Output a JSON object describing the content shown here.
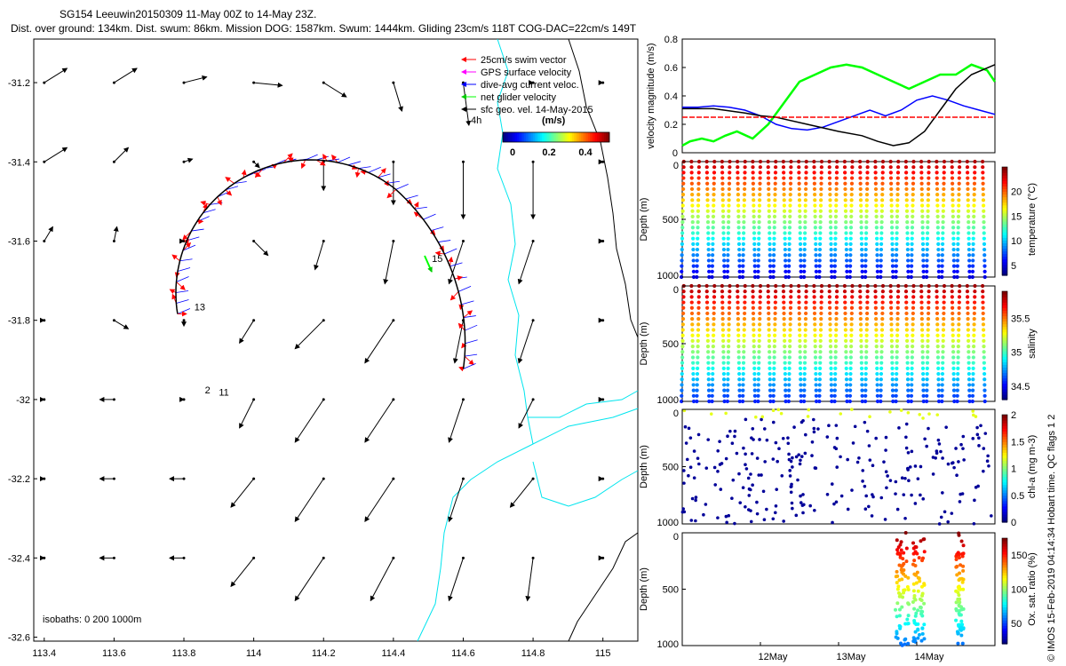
{
  "header": {
    "line1": "SG154 Leeuwin20150309 11-May 00Z to 14-May 23Z.",
    "line2": "Dist. over ground: 134km. Dist. swum: 86km. Mission DOG: 1587km. Swum: 1444km. Gliding 23cm/s 118T COG-DAC=22cm/s 149T"
  },
  "side_label": "© IMOS 15-Feb-2019 04:14:34 Hobart time. QC flags 1  2",
  "map": {
    "xticks": [
      "113.4",
      "113.6",
      "113.8",
      "114",
      "114.2",
      "114.4",
      "114.6",
      "114.8",
      "115"
    ],
    "xlim": [
      113.37,
      115.1
    ],
    "yticks": [
      "-31.2",
      "-31.4",
      "-31.6",
      "-31.8",
      "-32",
      "-32.2",
      "-32.4",
      "-32.6"
    ],
    "ylim": [
      -32.61,
      -31.09
    ],
    "isobaths": "isobaths: 0   200   1000m",
    "legend": [
      {
        "label": "25cm/s swim vector",
        "color": "#ff0000"
      },
      {
        "label": "GPS surface velocity",
        "color": "#ff00ff"
      },
      {
        "label": "dive-avg current veloc.",
        "color": "#0000ff"
      },
      {
        "label": "net glider velocity",
        "color": "#00ff00"
      },
      {
        "label": "sfc geo. vel. 14-May-2015",
        "color": "#000000"
      }
    ],
    "time_label": "4h",
    "colorbar": {
      "title": "(m/s)",
      "ticks": [
        "0",
        "0.2",
        "0.4"
      ]
    },
    "track_labels": [
      {
        "text": "13",
        "lon": 113.83,
        "lat": -31.775
      },
      {
        "text": "15",
        "lon": 114.51,
        "lat": -31.653
      },
      {
        "text": "2",
        "lon": 113.86,
        "lat": -31.985
      },
      {
        "text": "11",
        "lon": 113.9,
        "lat": -31.99
      }
    ],
    "vector_field": {
      "lons": [
        113.4,
        113.6,
        113.8,
        114.0,
        114.2,
        114.4,
        114.6,
        114.8,
        115.0
      ],
      "lats": [
        -31.2,
        -31.4,
        -31.6,
        -31.8,
        -32.0,
        -32.2,
        -32.4,
        -32.6
      ],
      "u_rows": [
        [
          0.08,
          0.08,
          0.08,
          0.1,
          0.08,
          0.03,
          0.02,
          0.0,
          0.0
        ],
        [
          0.08,
          0.05,
          0.03,
          0.02,
          0.0,
          0.0,
          0.0,
          0.0,
          0.0
        ],
        [
          0.03,
          0.01,
          0.0,
          0.05,
          -0.03,
          -0.03,
          -0.05,
          -0.05,
          0.0
        ],
        [
          0.0,
          0.05,
          0.0,
          -0.05,
          -0.1,
          -0.1,
          -0.03,
          -0.05,
          0.0
        ],
        [
          0.0,
          -0.05,
          0.0,
          -0.05,
          -0.1,
          -0.1,
          -0.05,
          -0.05,
          0.0
        ],
        [
          0.0,
          -0.05,
          -0.05,
          -0.08,
          -0.1,
          -0.1,
          -0.05,
          -0.08,
          0.0
        ],
        [
          0.0,
          -0.05,
          -0.05,
          -0.08,
          -0.1,
          -0.08,
          -0.05,
          -0.02,
          0.0
        ]
      ],
      "v_rows": [
        [
          0.05,
          0.05,
          0.02,
          -0.01,
          -0.05,
          -0.1,
          -0.15,
          0.0,
          0.0
        ],
        [
          0.05,
          0.05,
          0.01,
          -0.02,
          -0.1,
          -0.15,
          -0.2,
          -0.2,
          0.0
        ],
        [
          0.05,
          0.05,
          0.0,
          -0.05,
          -0.1,
          -0.15,
          -0.15,
          -0.15,
          0.0
        ],
        [
          0.0,
          -0.03,
          -0.02,
          -0.08,
          -0.1,
          -0.15,
          -0.15,
          -0.15,
          0.0
        ],
        [
          0.0,
          0.0,
          0.0,
          -0.1,
          -0.15,
          -0.15,
          -0.15,
          -0.1,
          0.0
        ],
        [
          0.0,
          0.0,
          0.0,
          -0.1,
          -0.15,
          -0.15,
          -0.15,
          -0.1,
          0.0
        ],
        [
          0.0,
          0.0,
          0.0,
          -0.1,
          -0.15,
          -0.15,
          -0.15,
          -0.15,
          0.0
        ]
      ]
    }
  },
  "time_axis": {
    "range": [
      11.0,
      15.0
    ],
    "ticks": [
      {
        "v": 12,
        "label": "12May"
      },
      {
        "v": 13,
        "label": "13May"
      },
      {
        "v": 14,
        "label": "14May"
      }
    ]
  },
  "velocity_panel": {
    "ylabel": "velocity magnitude (m/s)",
    "ylim": [
      0,
      0.8
    ],
    "yticks": [
      "0",
      "0.2",
      "0.4",
      "0.6",
      "0.8"
    ],
    "series": [
      {
        "name": "net glider velocity",
        "color": "#00ff00",
        "t": [
          11.0,
          11.1,
          11.25,
          11.4,
          11.55,
          11.7,
          11.9,
          12.1,
          12.3,
          12.5,
          12.7,
          12.9,
          13.1,
          13.3,
          13.5,
          13.7,
          13.9,
          14.1,
          14.3,
          14.5,
          14.7,
          14.9,
          15.0
        ],
        "v": [
          0.05,
          0.08,
          0.1,
          0.08,
          0.12,
          0.15,
          0.1,
          0.2,
          0.35,
          0.5,
          0.55,
          0.6,
          0.62,
          0.6,
          0.55,
          0.5,
          0.45,
          0.5,
          0.55,
          0.55,
          0.62,
          0.58,
          0.5
        ]
      },
      {
        "name": "dive-avg current veloc.",
        "color": "#0000ff",
        "t": [
          11.0,
          11.2,
          11.4,
          11.6,
          11.8,
          12.0,
          12.2,
          12.4,
          12.6,
          12.8,
          13.0,
          13.2,
          13.4,
          13.6,
          13.8,
          14.0,
          14.2,
          14.4,
          14.6,
          14.8,
          15.0
        ],
        "v": [
          0.32,
          0.32,
          0.33,
          0.32,
          0.3,
          0.26,
          0.2,
          0.17,
          0.16,
          0.18,
          0.22,
          0.26,
          0.3,
          0.26,
          0.3,
          0.37,
          0.4,
          0.37,
          0.33,
          0.3,
          0.27
        ]
      },
      {
        "name": "sfc geo. vel.",
        "color": "#000000",
        "t": [
          11.0,
          11.4,
          11.8,
          12.0,
          12.2,
          12.6,
          13.0,
          13.3,
          13.5,
          13.7,
          13.9,
          14.1,
          14.3,
          14.5,
          14.7,
          15.0
        ],
        "v": [
          0.31,
          0.31,
          0.28,
          0.26,
          0.25,
          0.2,
          0.15,
          0.12,
          0.08,
          0.05,
          0.07,
          0.15,
          0.3,
          0.45,
          0.55,
          0.62
        ]
      },
      {
        "name": "25cm/s",
        "color": "#ff0000",
        "t": [
          11.0,
          15.0
        ],
        "v": [
          0.25,
          0.25
        ]
      }
    ]
  },
  "section_panels": [
    {
      "ylabel": "temperature (°C)",
      "cbar_ticks": [
        "5",
        "10",
        "15",
        "20"
      ],
      "clim": [
        3,
        25
      ]
    },
    {
      "ylabel": "salinity",
      "cbar_ticks": [
        "34.5",
        "35",
        "35.5"
      ],
      "clim": [
        34.3,
        35.9
      ]
    },
    {
      "ylabel": "chl-a (mg m-3)",
      "cbar_ticks": [
        "0",
        "0.5",
        "1",
        "1.5",
        "2"
      ],
      "clim": [
        0,
        2
      ]
    },
    {
      "ylabel": "Ox. sat. ratio (%)",
      "cbar_ticks": [
        "50",
        "100",
        "150"
      ],
      "clim": [
        20,
        175
      ]
    }
  ],
  "depth": {
    "ylabel": "Depth (m)",
    "ticks": [
      "0",
      "500",
      "1000"
    ]
  }
}
